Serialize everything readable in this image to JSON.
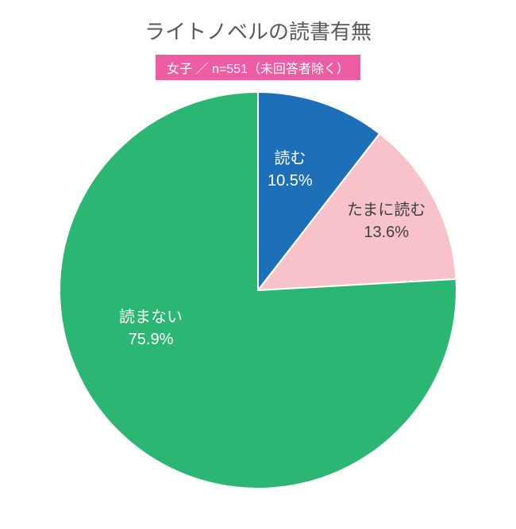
{
  "chart": {
    "type": "pie",
    "title": "ライトノベルの読書有無",
    "subtitle": "女子 ／ n=551（未回答者除く）",
    "title_fontsize": 26,
    "title_color": "#595959",
    "subtitle_bg": "#ee5da1",
    "subtitle_color": "#ffffff",
    "subtitle_fontsize": 16,
    "background_color": "#ffffff",
    "radius": 250,
    "stroke_color": "#ffffff",
    "stroke_width": 2,
    "slices": [
      {
        "label": "読む",
        "value": 10.5,
        "percent_text": "10.5%",
        "color": "#1d6fb8",
        "label_color": "#ffffff"
      },
      {
        "label": "たまに読む",
        "value": 13.6,
        "percent_text": "13.6%",
        "color": "#f8c2ca",
        "label_color": "#404040"
      },
      {
        "label": "読まない",
        "value": 75.9,
        "percent_text": "75.9%",
        "color": "#2bb673",
        "label_color": "#ffffff"
      }
    ]
  }
}
